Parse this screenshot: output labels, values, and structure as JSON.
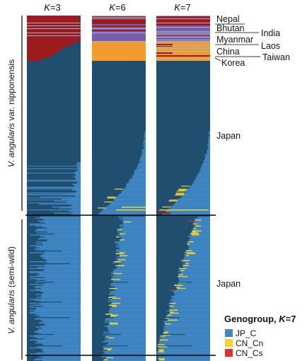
{
  "chart_data": {
    "type": "bar",
    "stacked": true,
    "orientation": "horizontal",
    "panels": [
      {
        "k_prefix": "K",
        "k_value": "=3"
      },
      {
        "k_prefix": "K",
        "k_value": "=6"
      },
      {
        "k_prefix": "K",
        "k_value": "=7"
      }
    ],
    "groups": [
      {
        "label_italic": "V. angularis",
        "label_rest": " var. nipponensis",
        "regions": [
          {
            "name": "Nepal",
            "side": "left"
          },
          {
            "name": "Bhutan",
            "side": "left"
          },
          {
            "name": "India",
            "side": "right"
          },
          {
            "name": "Myanmar",
            "side": "left"
          },
          {
            "name": "Laos",
            "side": "right"
          },
          {
            "name": "China",
            "side": "left"
          },
          {
            "name": "Taiwan",
            "side": "right"
          },
          {
            "name": "Korea",
            "side": "left"
          },
          {
            "name": "Japan",
            "side": "left"
          }
        ]
      },
      {
        "label_italic": "V. angularis",
        "label_rest": " (semi-wild)",
        "regions": [
          {
            "name": "Japan",
            "side": "left"
          }
        ]
      }
    ],
    "legend": {
      "title_prefix": "Genogroup, ",
      "title_k": "K",
      "title_suffix": "=7",
      "items": [
        {
          "label": "JP_C",
          "color": "#3f88c5"
        },
        {
          "label": "CN_Cn",
          "color": "#f3d431"
        },
        {
          "label": "CN_Cs",
          "color": "#e0312b"
        }
      ]
    },
    "colors": {
      "japan_dark": "#1f4e6e",
      "japan_light": "#3f88c5",
      "himalaya_red": "#9b1b1f",
      "purple": "#7a5ca8",
      "orange": "#f29a2e",
      "yellow": "#f3d431",
      "red": "#e0312b",
      "row_line": "#9bb7d4"
    }
  }
}
